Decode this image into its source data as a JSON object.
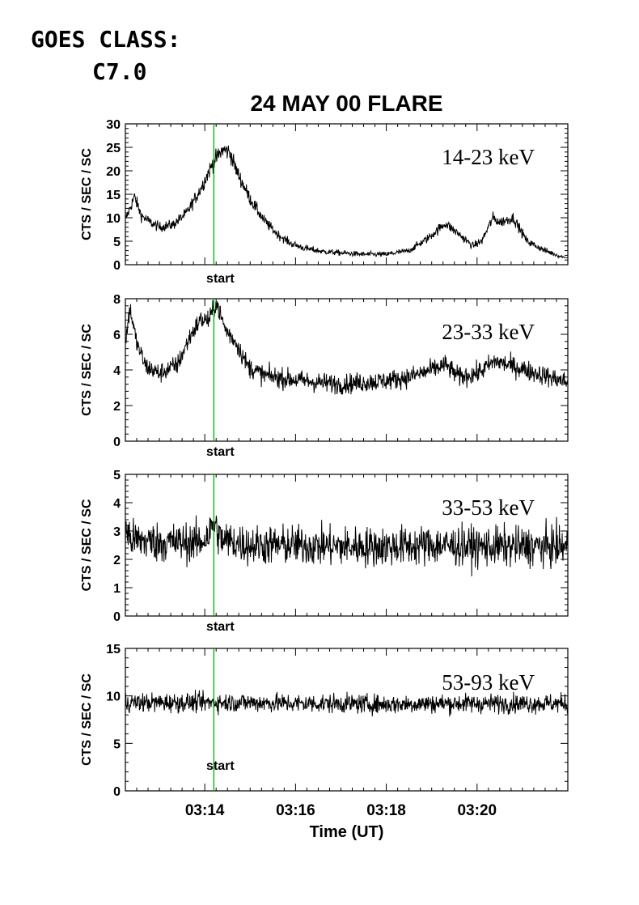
{
  "header": {
    "goes_line1": "GOES CLASS:",
    "goes_line2": "C7.0"
  },
  "chart_data": {
    "type": "line",
    "title": "24 MAY 00 FLARE",
    "xlabel": "Time (UT)",
    "x_units": "minutes",
    "xlim": [
      12.25,
      22.0
    ],
    "x_ticks": [
      {
        "value": 14,
        "label": "03:14"
      },
      {
        "value": 16,
        "label": "03:16"
      },
      {
        "value": 18,
        "label": "03:18"
      },
      {
        "value": 20,
        "label": "03:20"
      }
    ],
    "marker": {
      "x": 14.2,
      "label": "start",
      "color": "#00b000"
    },
    "panels": [
      {
        "band": "14-23 keV",
        "ylabel": "CTS / SEC / SC",
        "ylim": [
          0,
          30
        ],
        "yticks": [
          0,
          5,
          10,
          15,
          20,
          25,
          30
        ],
        "noise": 0.6,
        "profile": [
          [
            12.25,
            9.5
          ],
          [
            12.45,
            14.5
          ],
          [
            12.6,
            10.5
          ],
          [
            12.8,
            9
          ],
          [
            13.0,
            8
          ],
          [
            13.3,
            8.5
          ],
          [
            13.6,
            11
          ],
          [
            13.9,
            16
          ],
          [
            14.2,
            22
          ],
          [
            14.4,
            24.5
          ],
          [
            14.55,
            24
          ],
          [
            14.7,
            20
          ],
          [
            15.0,
            14
          ],
          [
            15.3,
            9.5
          ],
          [
            15.6,
            6.5
          ],
          [
            15.9,
            4.5
          ],
          [
            16.2,
            3.5
          ],
          [
            16.6,
            2.8
          ],
          [
            17.0,
            2.5
          ],
          [
            17.5,
            2.2
          ],
          [
            18.0,
            2.2
          ],
          [
            18.5,
            3
          ],
          [
            18.9,
            5.5
          ],
          [
            19.3,
            8.8
          ],
          [
            19.6,
            6.5
          ],
          [
            19.9,
            4
          ],
          [
            20.1,
            5
          ],
          [
            20.35,
            10
          ],
          [
            20.5,
            9
          ],
          [
            20.8,
            10
          ],
          [
            21.1,
            5
          ],
          [
            21.5,
            3
          ],
          [
            22.0,
            1.2
          ]
        ]
      },
      {
        "band": "23-33 keV",
        "ylabel": "CTS / SEC / SC",
        "ylim": [
          0,
          8
        ],
        "yticks": [
          0,
          2,
          4,
          6,
          8
        ],
        "noise": 0.28,
        "profile": [
          [
            12.25,
            5.5
          ],
          [
            12.35,
            7.5
          ],
          [
            12.5,
            5.5
          ],
          [
            12.7,
            4.2
          ],
          [
            13.0,
            3.8
          ],
          [
            13.4,
            4.3
          ],
          [
            13.7,
            6.0
          ],
          [
            13.9,
            6.8
          ],
          [
            14.1,
            6.8
          ],
          [
            14.25,
            7.8
          ],
          [
            14.45,
            6.3
          ],
          [
            14.7,
            5.5
          ],
          [
            14.95,
            4.2
          ],
          [
            15.3,
            3.7
          ],
          [
            15.8,
            3.5
          ],
          [
            16.5,
            3.3
          ],
          [
            17.0,
            3.2
          ],
          [
            17.5,
            3.3
          ],
          [
            18.0,
            3.4
          ],
          [
            18.5,
            3.6
          ],
          [
            19.0,
            4.0
          ],
          [
            19.3,
            4.3
          ],
          [
            19.6,
            3.6
          ],
          [
            20.0,
            3.8
          ],
          [
            20.4,
            4.5
          ],
          [
            20.8,
            4.2
          ],
          [
            21.2,
            3.9
          ],
          [
            21.6,
            3.6
          ],
          [
            22.0,
            3.3
          ]
        ]
      },
      {
        "band": "33-53 keV",
        "ylabel": "CTS / SEC / SC",
        "ylim": [
          0,
          5
        ],
        "yticks": [
          0,
          1,
          2,
          3,
          4,
          5
        ],
        "noise": 0.35,
        "profile": [
          [
            12.25,
            3.0
          ],
          [
            12.4,
            2.7
          ],
          [
            13.0,
            2.6
          ],
          [
            13.9,
            2.6
          ],
          [
            14.1,
            2.9
          ],
          [
            14.2,
            3.3
          ],
          [
            14.35,
            2.7
          ],
          [
            15.0,
            2.5
          ],
          [
            16.0,
            2.5
          ],
          [
            17.0,
            2.45
          ],
          [
            18.0,
            2.45
          ],
          [
            19.0,
            2.5
          ],
          [
            20.0,
            2.45
          ],
          [
            21.0,
            2.45
          ],
          [
            22.0,
            2.45
          ]
        ]
      },
      {
        "band": "53-93 keV",
        "ylabel": "CTS / SEC / SC",
        "ylim": [
          0,
          15
        ],
        "yticks": [
          0,
          5,
          10,
          15
        ],
        "noise": 0.5,
        "profile": [
          [
            12.25,
            9.3
          ],
          [
            13.0,
            9.3
          ],
          [
            14.0,
            9.3
          ],
          [
            15.0,
            9.3
          ],
          [
            16.0,
            9.2
          ],
          [
            17.0,
            9.2
          ],
          [
            18.0,
            9.1
          ],
          [
            19.0,
            9.2
          ],
          [
            20.0,
            9.2
          ],
          [
            21.0,
            9.2
          ],
          [
            22.0,
            9.2
          ]
        ]
      }
    ]
  }
}
